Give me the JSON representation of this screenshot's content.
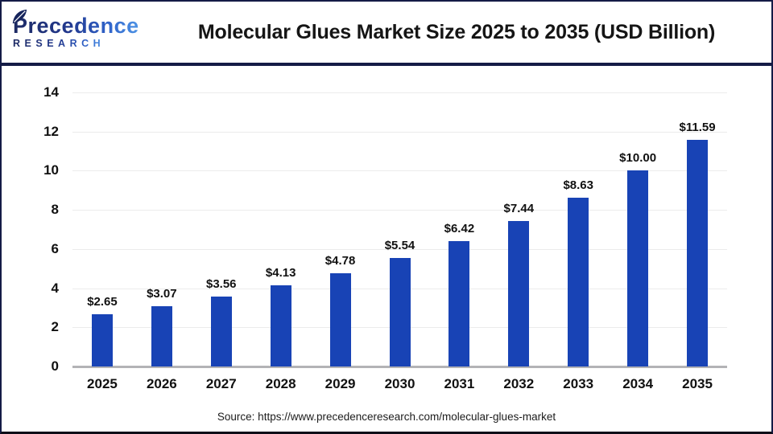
{
  "header": {
    "logo_line1": "Precedence",
    "logo_line2": "RESEARCH",
    "title": "Molecular Glues Market Size 2025 to 2035 (USD Billion)"
  },
  "chart_data": {
    "type": "bar",
    "title": "Molecular Glues Market Size 2025 to 2035 (USD Billion)",
    "categories": [
      "2025",
      "2026",
      "2027",
      "2028",
      "2029",
      "2030",
      "2031",
      "2032",
      "2033",
      "2034",
      "2035"
    ],
    "values": [
      2.65,
      3.07,
      3.56,
      4.13,
      4.78,
      5.54,
      6.42,
      7.44,
      8.63,
      10.0,
      11.59
    ],
    "value_labels": [
      "$2.65",
      "$3.07",
      "$3.56",
      "$4.13",
      "$4.78",
      "$5.54",
      "$6.42",
      "$7.44",
      "$8.63",
      "$10.00",
      "$11.59"
    ],
    "xlabel": "",
    "ylabel": "",
    "ylim": [
      0,
      14
    ],
    "yticks": [
      0,
      2,
      4,
      6,
      8,
      10,
      12,
      14
    ],
    "grid": true,
    "legend": false,
    "bar_color": "#1843b5",
    "unit": "USD Billion"
  },
  "footer": {
    "source": "Source: https://www.precedenceresearch.com/molecular-glues-market"
  }
}
